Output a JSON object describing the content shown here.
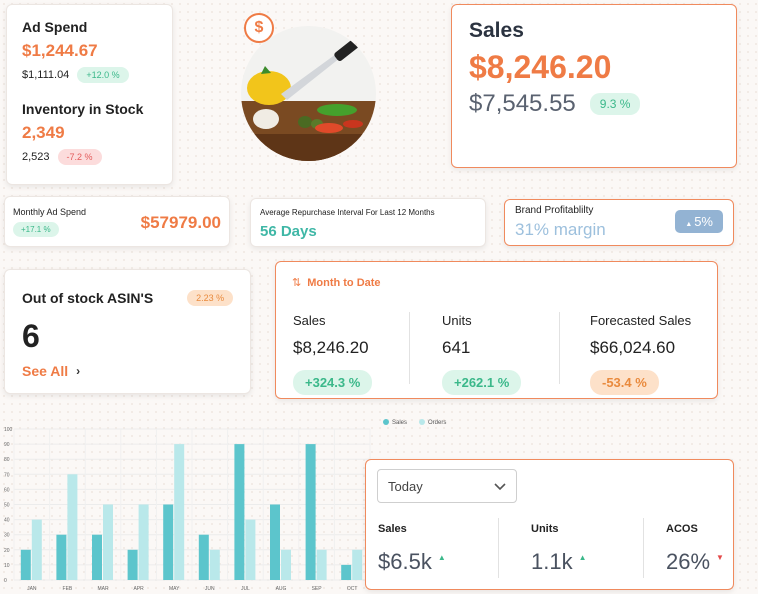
{
  "ad_spend": {
    "label": "Ad Spend",
    "value": "$1,244.67",
    "previous": "$1,111.04",
    "change": "+12.0 %"
  },
  "inventory": {
    "label": "Inventory in Stock",
    "value": "2,349",
    "previous": "2,523",
    "change": "-7.2 %"
  },
  "dollar_icon": "$",
  "sales": {
    "title": "Sales",
    "value": "$8,246.20",
    "previous": "$7,545.55",
    "change": "9.3 %"
  },
  "monthly_ad_spend": {
    "label": "Monthly Ad Spend",
    "change": "+17.1 %",
    "value": "$57979.00"
  },
  "repurchase": {
    "label": "Average Repurchase Interval  For  Last 12 Months",
    "value": "56 Days"
  },
  "brand_profitability": {
    "label": "Brand Profitablilty",
    "value": "31% margin",
    "change": "5%"
  },
  "out_of_stock": {
    "title": "Out of stock ASIN'S",
    "change": "2.23 %",
    "count": "6",
    "see_all": "See All"
  },
  "month_to_date": {
    "title": "Month to Date",
    "columns": [
      {
        "label": "Sales",
        "value": "$8,246.20",
        "change": "+324.3 %"
      },
      {
        "label": "Units",
        "value": "641",
        "change": "+262.1 %"
      },
      {
        "label": "Forecasted Sales",
        "value": "$66,024.60",
        "change": "-53.4 %"
      }
    ]
  },
  "chart_data": {
    "type": "bar",
    "categories": [
      "JAN",
      "FEB",
      "MAR",
      "APR",
      "MAY",
      "JUN",
      "JUL",
      "AUG",
      "SEP",
      "OCT"
    ],
    "series": [
      {
        "name": "Sales",
        "values": [
          20,
          30,
          30,
          20,
          50,
          30,
          90,
          50,
          90,
          10
        ]
      },
      {
        "name": "Orders",
        "values": [
          40,
          70,
          50,
          50,
          90,
          20,
          40,
          20,
          20,
          20
        ]
      }
    ],
    "yticks": [
      0,
      10,
      20,
      30,
      40,
      50,
      60,
      70,
      80,
      90,
      100
    ],
    "ylim": [
      0,
      100
    ],
    "grid": true,
    "legend": "top-right",
    "colors": {
      "Sales": "#5cc5cc",
      "Orders": "#b9e8ea"
    }
  },
  "today": {
    "selected": "Today",
    "columns": [
      {
        "label": "Sales",
        "value": "$6.5k",
        "trend": "up"
      },
      {
        "label": "Units",
        "value": "1.1k",
        "trend": "up"
      },
      {
        "label": "ACOS",
        "value": "26%",
        "trend": "down"
      }
    ]
  },
  "colors": {
    "accent": "#ef7b45",
    "positive": "#3bb88a",
    "negative": "#e35a5a"
  }
}
